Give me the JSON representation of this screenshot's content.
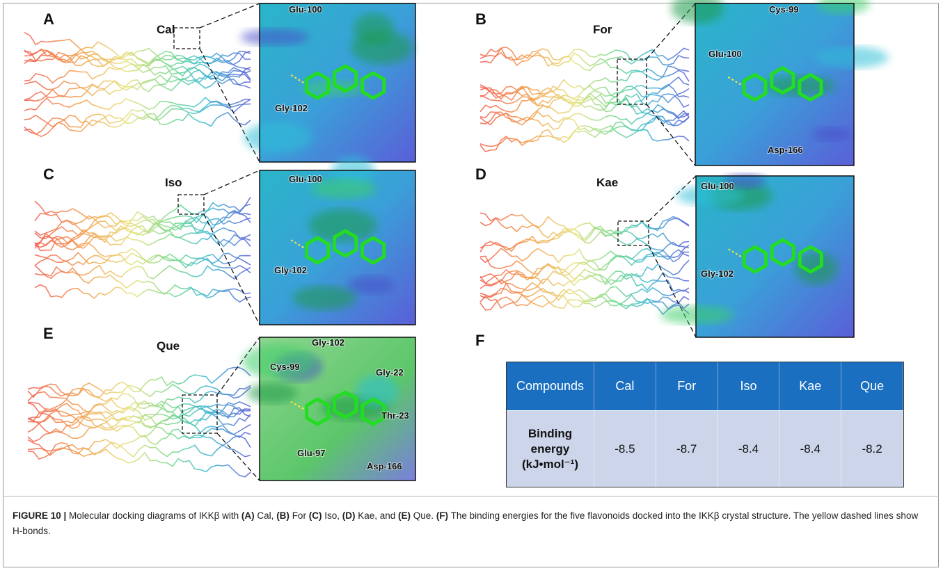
{
  "panels": [
    {
      "label": "A",
      "compound": "Cal",
      "residues": [
        "Glu-100",
        "Gly-102"
      ]
    },
    {
      "label": "B",
      "compound": "For",
      "residues": [
        "Cys-99",
        "Glu-100",
        "Asp-166"
      ]
    },
    {
      "label": "C",
      "compound": "Iso",
      "residues": [
        "Glu-100",
        "Gly-102"
      ]
    },
    {
      "label": "D",
      "compound": "Kae",
      "residues": [
        "Glu-100",
        "Gly-102"
      ]
    },
    {
      "label": "E",
      "compound": "Que",
      "residues": [
        "Gly-102",
        "Cys-99",
        "Gly-22",
        "Thr-23",
        "Glu-97",
        "Asp-166"
      ]
    }
  ],
  "table": {
    "label": "F",
    "header": [
      "Compounds",
      "Cal",
      "For",
      "Iso",
      "Kae",
      "Que"
    ],
    "row_label": [
      "Binding",
      "energy",
      "(kJ•mol⁻¹)"
    ],
    "values": [
      -8.5,
      -8.7,
      -8.4,
      -8.4,
      -8.2
    ]
  },
  "caption": {
    "parts": [
      {
        "text": "FIGURE 10 |",
        "bold": true
      },
      {
        "text": " Molecular docking diagrams of IKKβ with ",
        "bold": false
      },
      {
        "text": "(A)",
        "bold": true
      },
      {
        "text": " Cal, ",
        "bold": false
      },
      {
        "text": "(B)",
        "bold": true
      },
      {
        "text": " For ",
        "bold": false
      },
      {
        "text": "(C)",
        "bold": true
      },
      {
        "text": " Iso, ",
        "bold": false
      },
      {
        "text": "(D)",
        "bold": true
      },
      {
        "text": " Kae, and ",
        "bold": false
      },
      {
        "text": "(E)",
        "bold": true
      },
      {
        "text": " Que. ",
        "bold": false
      },
      {
        "text": "(F)",
        "bold": true
      },
      {
        "text": " The binding energies for the five flavonoids docked into the IKKβ crystal structure. The yellow dashed lines show H-bonds.",
        "bold": false
      }
    ]
  }
}
